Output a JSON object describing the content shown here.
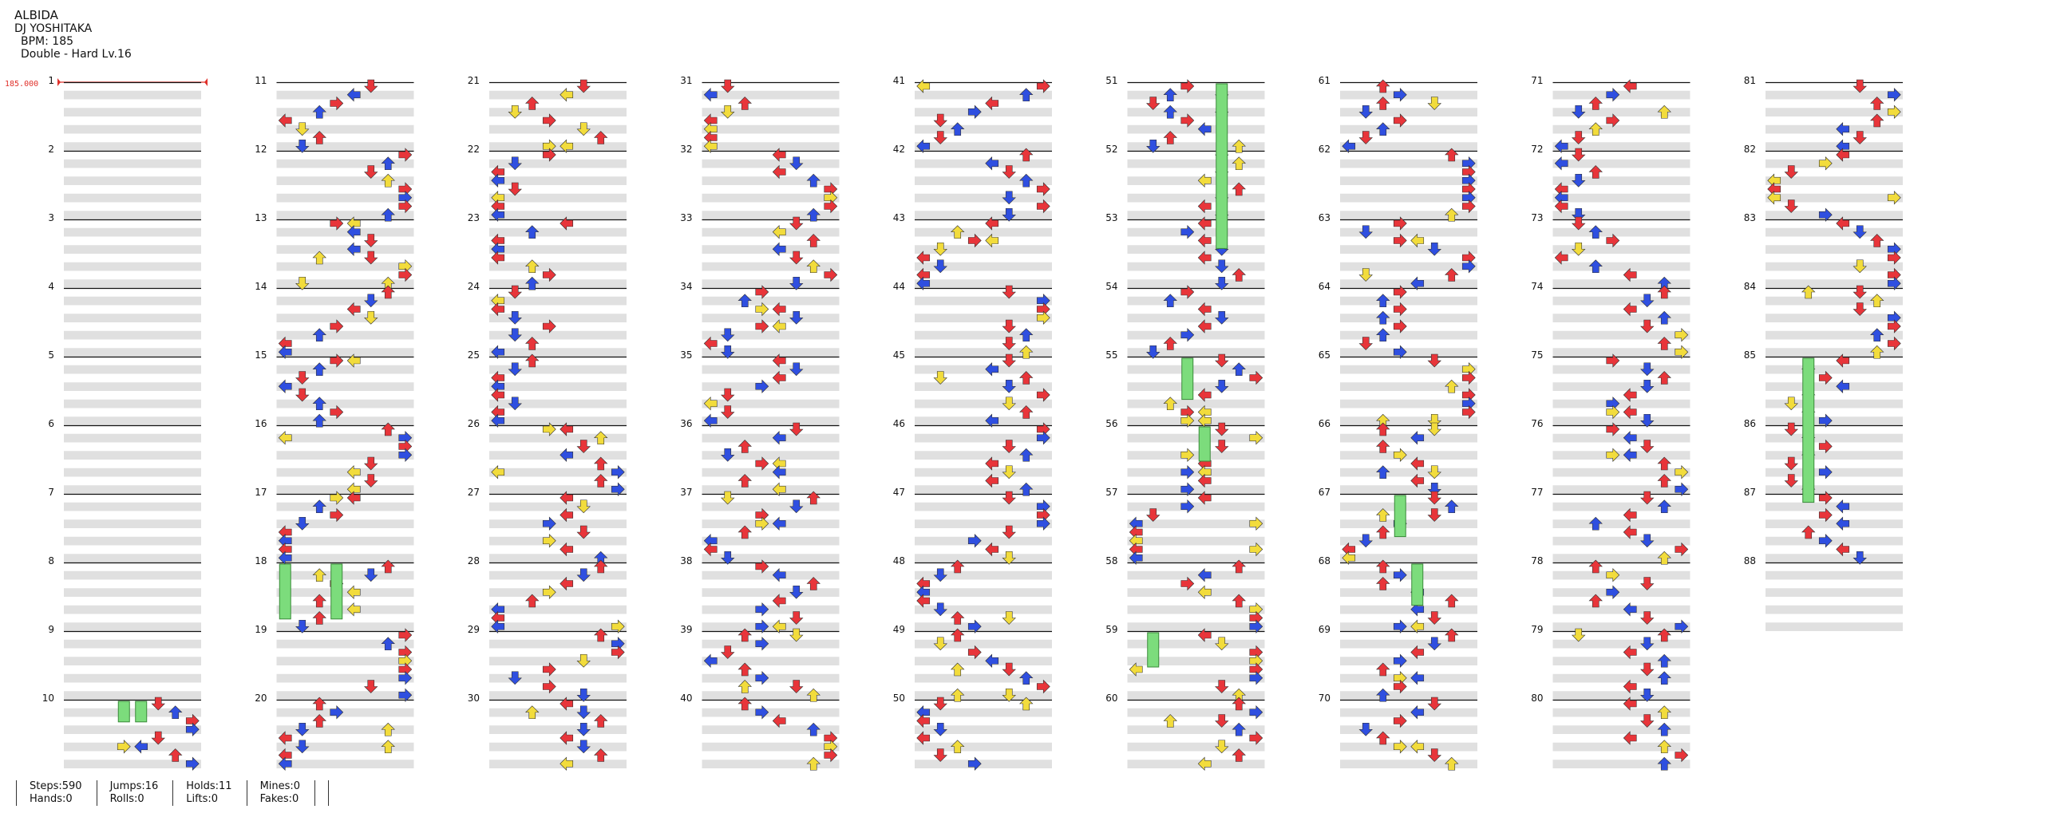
{
  "song": {
    "title": "ALBIDA",
    "artist": "DJ YOSHITAKA",
    "bpm_line": "BPM: 185",
    "chart_line": "Double - Hard Lv.16"
  },
  "bpm_marker": {
    "value": "185.000",
    "color": "#e0302a"
  },
  "chart_data": {
    "type": "table",
    "description_style": "stepchart",
    "total_measures": 88,
    "measures_per_column": 10,
    "measure_labels": [
      "1",
      "2",
      "3",
      "4",
      "5",
      "6",
      "7",
      "8",
      "9",
      "10",
      "11",
      "12",
      "13",
      "14",
      "15",
      "16",
      "17",
      "18",
      "19",
      "20",
      "21",
      "22",
      "23",
      "24",
      "25",
      "26",
      "27",
      "28",
      "29",
      "30",
      "31",
      "32",
      "33",
      "34",
      "35",
      "36",
      "37",
      "38",
      "39",
      "40",
      "41",
      "42",
      "43",
      "44",
      "45",
      "46",
      "47",
      "48",
      "49",
      "50",
      "51",
      "52",
      "53",
      "54",
      "55",
      "56",
      "57",
      "58",
      "59",
      "60",
      "61",
      "62",
      "63",
      "64",
      "65",
      "66",
      "67",
      "68",
      "69",
      "70",
      "71",
      "72",
      "73",
      "74",
      "75",
      "76",
      "77",
      "78",
      "79",
      "80",
      "81",
      "82",
      "83",
      "84",
      "85",
      "86",
      "87",
      "88"
    ],
    "note_colors": {
      "quarter": "#e8353a",
      "eighth": "#2f4fe0",
      "sixteenth": "#f2dc3c",
      "hold": "#7cdc7c"
    }
  },
  "stats": [
    {
      "label": "Steps",
      "value": "590"
    },
    {
      "label": "Hands",
      "value": "0"
    },
    {
      "label": "Jumps",
      "value": "16"
    },
    {
      "label": "Rolls",
      "value": "0"
    },
    {
      "label": "Holds",
      "value": "11"
    },
    {
      "label": "Lifts",
      "value": "0"
    },
    {
      "label": "Mines",
      "value": "0"
    },
    {
      "label": "Fakes",
      "value": "0"
    }
  ]
}
